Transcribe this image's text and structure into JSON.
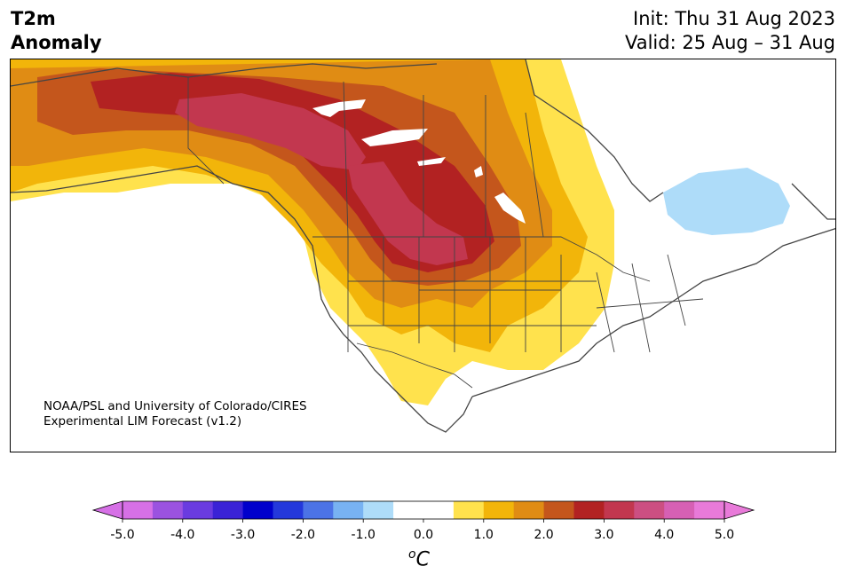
{
  "title": {
    "left_line1": "T2m",
    "left_line2": "Anomaly",
    "right_line1": "Init: Thu 31 Aug 2023",
    "right_line2": "Valid: 25 Aug – 31 Aug"
  },
  "credit": {
    "line1": "NOAA/PSL and University of Colorado/CIRES",
    "line2": "Experimental LIM Forecast (v1.2)"
  },
  "colorbar": {
    "unit_prefix": "o",
    "unit_symbol": "C",
    "tick_labels": [
      "-5.0",
      "-4.0",
      "-3.0",
      "-2.0",
      "-1.0",
      "0.0",
      "1.0",
      "2.0",
      "3.0",
      "4.0",
      "5.0"
    ],
    "bin_colors": [
      "#d670e6",
      "#9b52e0",
      "#6a3be0",
      "#3a22d6",
      "#0000cc",
      "#2438db",
      "#4c73e6",
      "#78b2f2",
      "#aedcf9",
      "#ffffff",
      "#ffffff",
      "#ffe24d",
      "#f2b50a",
      "#e08c14",
      "#c4561c",
      "#b22222",
      "#c2374f",
      "#cc4f82",
      "#d660b4",
      "#e87ad9"
    ],
    "under_color": "#d670e6",
    "over_color": "#e87ad9"
  },
  "map": {
    "region": "North America",
    "anomaly_colors": {
      "plus_0_5": "#ffe24d",
      "plus_1_0": "#f2b50a",
      "plus_1_5": "#e08c14",
      "plus_2_0": "#c4561c",
      "plus_2_5": "#b22222",
      "plus_3_0": "#c2374f",
      "minus_0_5": "#aedcf9"
    }
  }
}
